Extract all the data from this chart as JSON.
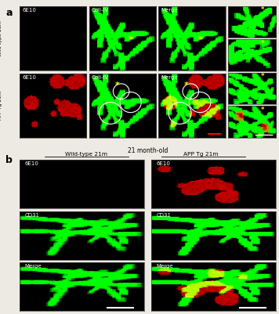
{
  "panel_a_label": "a",
  "panel_b_label": "b",
  "row1_label": "Wild-type 21m",
  "row2_label": "APP Tg 21m",
  "col1_label": "6E10",
  "col2_label": "ColI-IV",
  "col3_label": "Merge",
  "bottom_title": "21 month-old",
  "b_col1_label": "Wild-type 21m",
  "b_col2_label": "APP Tg 21m",
  "b_row_labels": [
    "6E10",
    "CD31",
    "Merge"
  ],
  "label_fontsize": 5,
  "title_fontsize": 5.5,
  "panel_label_fontsize": 9
}
